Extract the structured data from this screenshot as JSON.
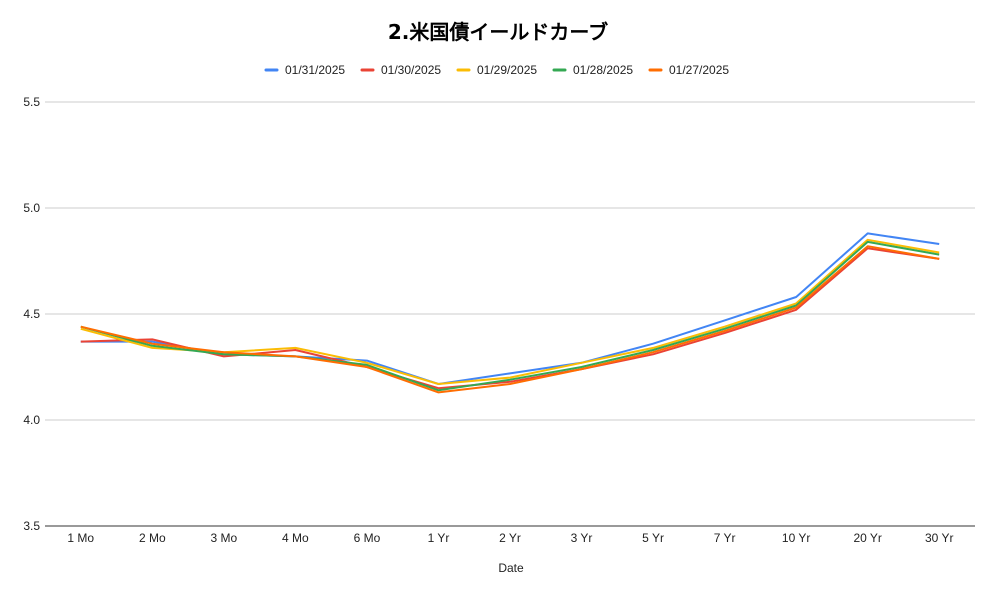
{
  "chart_data": {
    "type": "line",
    "title": "2.米国債イールドカーブ",
    "xlabel": "Date",
    "ylabel": "",
    "ylim": [
      3.5,
      5.5
    ],
    "yticks": [
      "3.5",
      "4.0",
      "4.5",
      "5.0",
      "5.5"
    ],
    "grid": true,
    "legend_position": "top",
    "categories": [
      "1 Mo",
      "2 Mo",
      "3 Mo",
      "4 Mo",
      "6 Mo",
      "1 Yr",
      "2 Yr",
      "3 Yr",
      "5 Yr",
      "7 Yr",
      "10 Yr",
      "20 Yr",
      "30 Yr"
    ],
    "series": [
      {
        "name": "01/31/2025",
        "color": "#4285f4",
        "values": [
          4.37,
          4.37,
          4.31,
          4.3,
          4.28,
          4.17,
          4.22,
          4.27,
          4.36,
          4.47,
          4.58,
          4.88,
          4.83
        ]
      },
      {
        "name": "01/30/2025",
        "color": "#ea4335",
        "values": [
          4.37,
          4.38,
          4.3,
          4.33,
          4.25,
          4.15,
          4.18,
          4.24,
          4.31,
          4.41,
          4.52,
          4.81,
          4.76
        ]
      },
      {
        "name": "01/29/2025",
        "color": "#fbbc04",
        "values": [
          4.43,
          4.34,
          4.32,
          4.34,
          4.27,
          4.17,
          4.2,
          4.27,
          4.34,
          4.44,
          4.55,
          4.85,
          4.79
        ]
      },
      {
        "name": "01/28/2025",
        "color": "#34a853",
        "values": [
          4.44,
          4.35,
          4.31,
          4.3,
          4.26,
          4.14,
          4.19,
          4.25,
          4.33,
          4.43,
          4.54,
          4.84,
          4.78
        ]
      },
      {
        "name": "01/27/2025",
        "color": "#ff6d01",
        "values": [
          4.44,
          4.36,
          4.32,
          4.3,
          4.25,
          4.13,
          4.17,
          4.24,
          4.32,
          4.42,
          4.53,
          4.82,
          4.76
        ]
      }
    ]
  }
}
